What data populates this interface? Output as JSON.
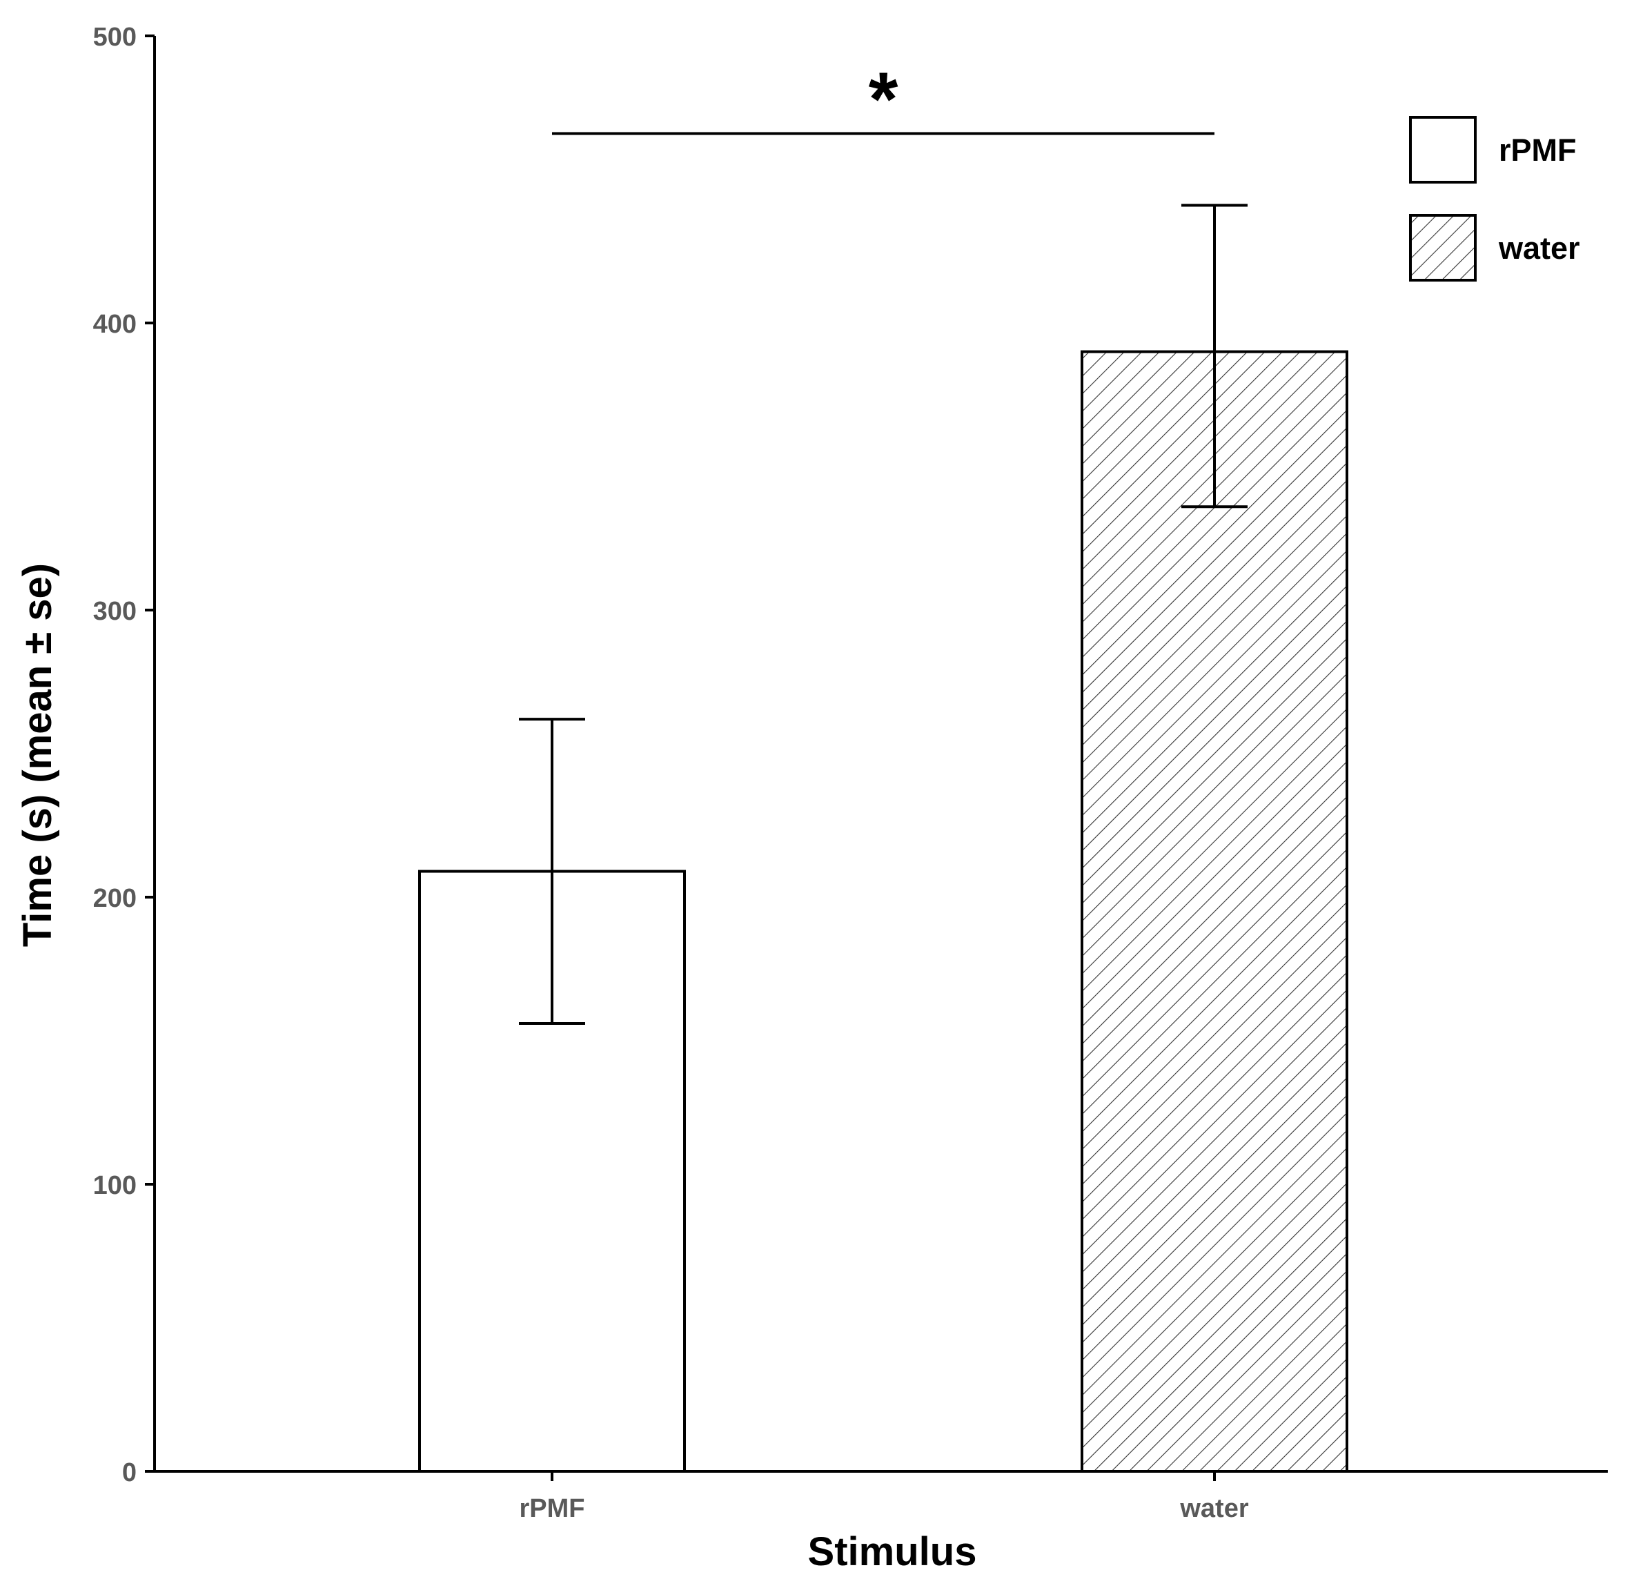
{
  "chart_data": {
    "type": "bar",
    "title": "",
    "xlabel": "Stimulus",
    "ylabel": "Time (s) (mean ± se)",
    "categories": [
      "rPMF",
      "water"
    ],
    "values": [
      209,
      390
    ],
    "error_low": [
      156,
      336
    ],
    "error_high": [
      262,
      441
    ],
    "ylim": [
      0,
      500
    ],
    "yticks": [
      0,
      100,
      200,
      300,
      400,
      500
    ],
    "ytick_labels": [
      "0",
      "100",
      "200",
      "300",
      "400",
      "500"
    ],
    "grid": false,
    "legend": {
      "placement": "top-right",
      "entries": [
        {
          "label": "rPMF",
          "fill": "plain"
        },
        {
          "label": "water",
          "fill": "hatched"
        }
      ]
    },
    "significance": {
      "label": "*",
      "between": [
        "rPMF",
        "water"
      ],
      "y": 466
    }
  },
  "colors": {
    "bar_fill": "#ffffff",
    "stroke": "#000000",
    "hatch": "#333333",
    "tick_text": "#595959"
  }
}
